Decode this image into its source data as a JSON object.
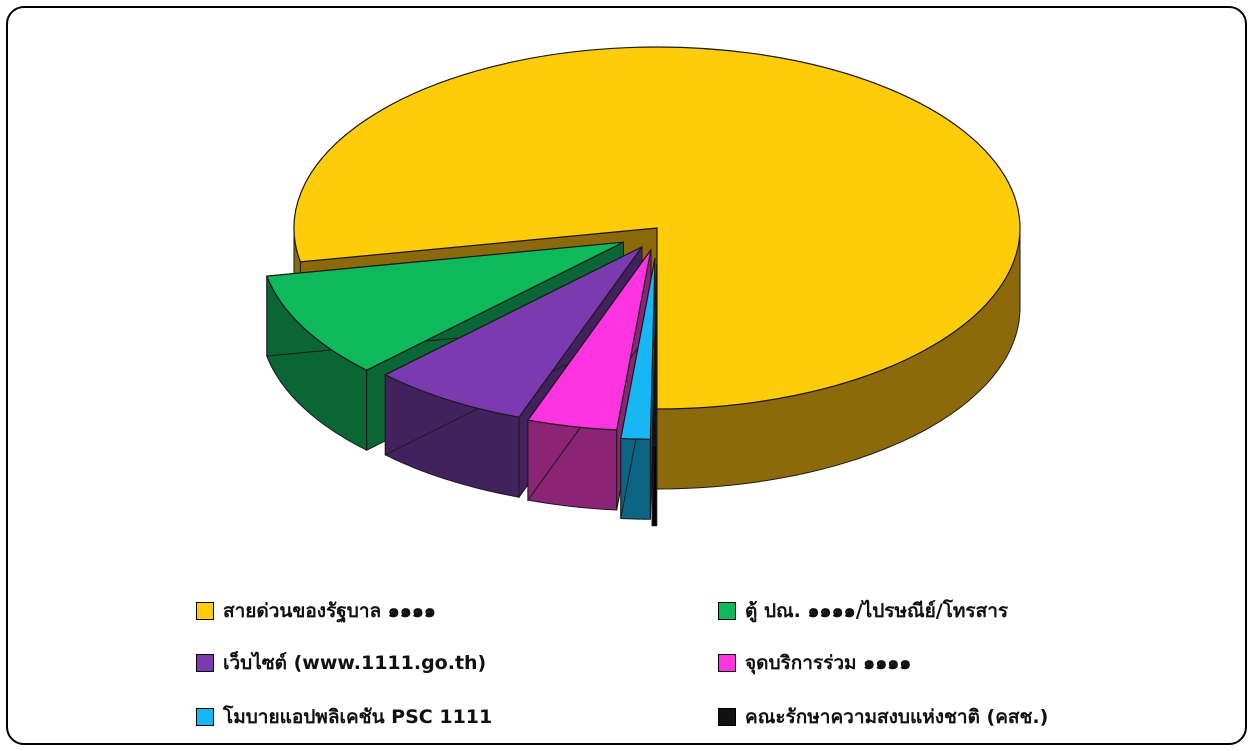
{
  "chart_data": {
    "type": "pie",
    "title": "",
    "series": [
      {
        "name": "สายด่วนของรัฐบาล ๑๑๑๑",
        "value": 78.0,
        "color": "#FFCC0A",
        "side_color": "#8C6A0C"
      },
      {
        "name": "ตู้ ปณ. ๑๑๑๑/ไปรษณีย์/โทรสาร",
        "value": 9.5,
        "color": "#0DB95A",
        "side_color": "#0A6634"
      },
      {
        "name": "เว็บไซต์ (www.1111.go.th)",
        "value": 7.0,
        "color": "#7B3AAF",
        "side_color": "#42225E"
      },
      {
        "name": "จุดบริการร่วม ๑๑๑๑",
        "value": 4.0,
        "color": "#FF33E0",
        "side_color": "#8C2475"
      },
      {
        "name": "โมบายแอปพลิเคชัน PSC 1111",
        "value": 1.3,
        "color": "#17B6F5",
        "side_color": "#0D6585"
      },
      {
        "name": "คณะรักษาความสงบแห่งชาติ (คสช.)",
        "value": 0.2,
        "color": "#111111",
        "side_color": "#000000"
      }
    ],
    "legend": "bottom"
  },
  "legend": {
    "items": [
      {
        "label": "สายด่วนของรัฐบาล ๑๑๑๑",
        "color": "#FFCC0A"
      },
      {
        "label": "ตู้ ปณ. ๑๑๑๑/ไปรษณีย์/โทรสาร",
        "color": "#0DB95A"
      },
      {
        "label": "เว็บไซต์ (www.1111.go.th)",
        "color": "#7B3AAF"
      },
      {
        "label": "จุดบริการร่วม ๑๑๑๑",
        "color": "#FF33E0"
      },
      {
        "label": "โมบายแอปพลิเคชัน PSC 1111",
        "color": "#17B6F5"
      },
      {
        "label": "คณะรักษาความสงบแห่งชาติ (คสช.)",
        "color": "#111111"
      }
    ]
  }
}
